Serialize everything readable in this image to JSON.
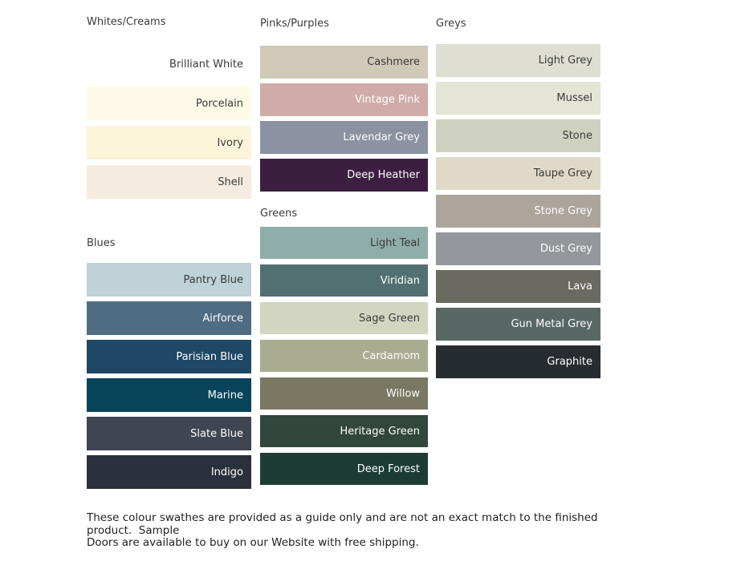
{
  "columns": [
    {
      "sections": [
        {
          "title": "Whites/Creams",
          "swatches": [
            {
              "name": "Brilliant White",
              "color": "#ffffff",
              "text": "dark"
            },
            {
              "name": "Porcelain",
              "color": "#fdfbe8",
              "text": "dark"
            },
            {
              "name": "Ivory",
              "color": "#faf5d8",
              "text": "dark"
            },
            {
              "name": "Shell",
              "color": "#f5ecdf",
              "text": "dark"
            }
          ]
        },
        {
          "title": "Blues",
          "swatches": [
            {
              "name": "Pantry Blue",
              "color": "#bed2d8",
              "text": "dark"
            },
            {
              "name": "Airforce",
              "color": "#506c82",
              "text": "light"
            },
            {
              "name": "Parisian Blue",
              "color": "#1e4865",
              "text": "light"
            },
            {
              "name": "Marine",
              "color": "#07445a",
              "text": "light"
            },
            {
              "name": "Slate Blue",
              "color": "#3f4551",
              "text": "light"
            },
            {
              "name": "Indigo",
              "color": "#2b313c",
              "text": "light"
            }
          ]
        }
      ]
    },
    {
      "sections": [
        {
          "title": "Pinks/Purples",
          "swatches": [
            {
              "name": "Cashmere",
              "color": "#cfc9b7",
              "text": "dark"
            },
            {
              "name": "Vintage Pink",
              "color": "#d0aca8",
              "text": "light"
            },
            {
              "name": "Lavendar Grey",
              "color": "#8d92a2",
              "text": "light"
            },
            {
              "name": "Deep Heather",
              "color": "#3c1f40",
              "text": "light"
            }
          ]
        },
        {
          "title": "Greens",
          "swatches": [
            {
              "name": "Light Teal",
              "color": "#8fada9",
              "text": "dark"
            },
            {
              "name": "Viridian",
              "color": "#527072",
              "text": "light"
            },
            {
              "name": "Sage Green",
              "color": "#d2d5c0",
              "text": "dark"
            },
            {
              "name": "Cardamom",
              "color": "#a9ac8f",
              "text": "light"
            },
            {
              "name": "Willow",
              "color": "#7a7763",
              "text": "light"
            },
            {
              "name": "Heritage Green",
              "color": "#32473b",
              "text": "light"
            },
            {
              "name": "Deep Forest",
              "color": "#1c3c34",
              "text": "light"
            }
          ]
        }
      ]
    },
    {
      "sections": [
        {
          "title": "Greys",
          "swatches": [
            {
              "name": "Light Grey",
              "color": "#dedfd2",
              "text": "dark"
            },
            {
              "name": "Mussel",
              "color": "#e4e5d6",
              "text": "dark"
            },
            {
              "name": "Stone",
              "color": "#cfd1c0",
              "text": "dark"
            },
            {
              "name": "Taupe Grey",
              "color": "#dfd9c8",
              "text": "dark"
            },
            {
              "name": "Stone Grey",
              "color": "#aba59b",
              "text": "light"
            },
            {
              "name": "Dust Grey",
              "color": "#96979d",
              "text": "light"
            },
            {
              "name": "Lava",
              "color": "#6b6a60",
              "text": "light"
            },
            {
              "name": "Gun Metal Grey",
              "color": "#586865",
              "text": "light"
            },
            {
              "name": "Graphite",
              "color": "#272c31",
              "text": "light"
            }
          ]
        }
      ]
    }
  ],
  "footer": {
    "line1": "These colour swathes are provided as a guide only and are not an exact match to the finished product.  Sample",
    "line2": "Doors are available to buy on our Website with free shipping."
  }
}
